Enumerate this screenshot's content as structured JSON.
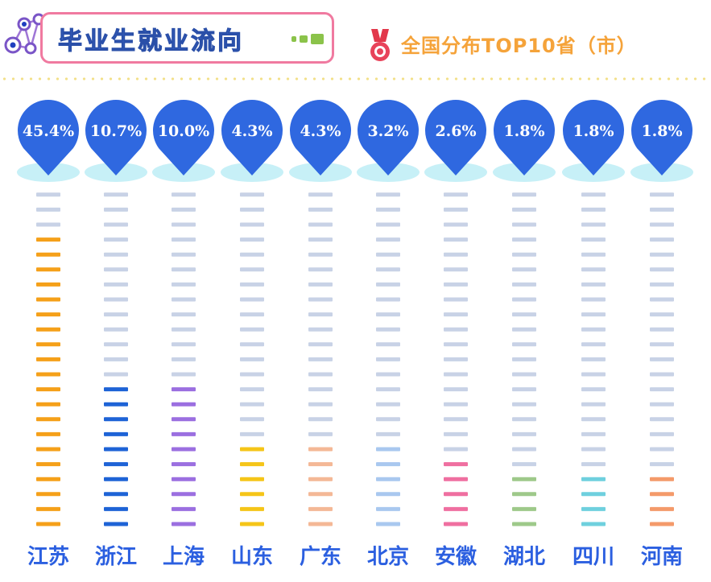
{
  "header": {
    "title": "毕业生就业流向",
    "subtitle": "全国分布TOP10省（市）",
    "accent_title": "#3f6fd8",
    "accent_subtitle": "#f5a33a",
    "frame_color": "#f07aa0"
  },
  "icons": {
    "left": "network-icon",
    "medal": "medal-icon"
  },
  "chart_data": {
    "type": "bar",
    "title": "毕业生就业流向",
    "subtitle": "全国分布TOP10省（市）",
    "categories": [
      "江苏",
      "浙江",
      "上海",
      "山东",
      "广东",
      "北京",
      "安徽",
      "湖北",
      "四川",
      "河南"
    ],
    "value_labels": [
      "45.4%",
      "10.7%",
      "10.0%",
      "4.3%",
      "4.3%",
      "3.2%",
      "2.6%",
      "1.8%",
      "1.8%",
      "1.8%"
    ],
    "values": [
      45.4,
      10.7,
      10.0,
      4.3,
      4.3,
      3.2,
      2.6,
      1.8,
      1.8,
      1.8
    ],
    "unit": "%",
    "colors": [
      "#f5a019",
      "#1e63d6",
      "#9b6fe0",
      "#f5c518",
      "#f4b896",
      "#a9c8ef",
      "#ef6fa0",
      "#9ec98a",
      "#6fd0de",
      "#f49a6a"
    ],
    "marker_color": "#2f68e0",
    "track_color": "#c8d2e6",
    "legend": "none",
    "grid": false
  }
}
